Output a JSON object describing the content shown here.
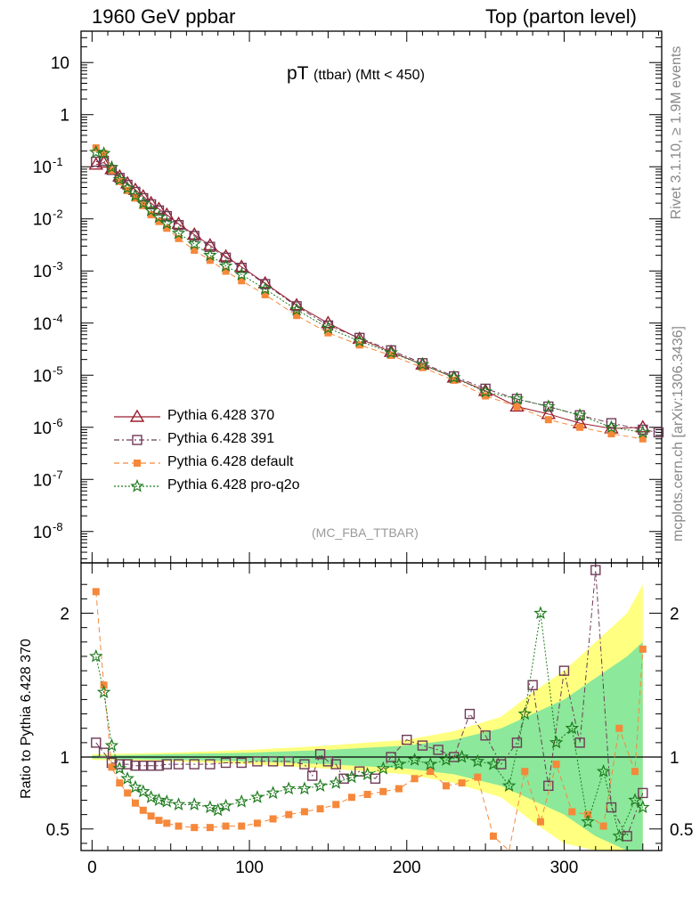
{
  "header": {
    "left": "1960 GeV ppbar",
    "right": "Top (parton level)"
  },
  "title": {
    "main": "pT",
    "sub": "(ttbar) (Mtt < 450)"
  },
  "analysis_label": "(MC_FBA_TTBAR)",
  "side_labels": {
    "rivet": "Rivet 3.1.10, ≥ 1.9M events",
    "mcplots": "mcplots.cern.ch [arXiv:1306.3436]"
  },
  "colors": {
    "p370": "#9b1c2c",
    "p391": "#6e3a57",
    "default": "#f5883a",
    "proq2o": "#1e7a1e",
    "band_outer": "#ffff80",
    "band_inner": "#8ce89a"
  },
  "chart_data": [
    {
      "type": "scatter",
      "panel": "main",
      "title": "pT (ttbar) (Mtt < 450)",
      "xlabel": "",
      "ylabel": "",
      "xlim": [
        -7,
        362
      ],
      "ylim": [
        2.5e-09,
        40
      ],
      "yscale": "log",
      "yticks": [
        {
          "v": 1e-08,
          "label": "10",
          "exp": "-8"
        },
        {
          "v": 1e-07,
          "label": "10",
          "exp": "-7"
        },
        {
          "v": 1e-06,
          "label": "10",
          "exp": "-6"
        },
        {
          "v": 1e-05,
          "label": "10",
          "exp": "-5"
        },
        {
          "v": 0.0001,
          "label": "10",
          "exp": "-4"
        },
        {
          "v": 0.001,
          "label": "10",
          "exp": "-3"
        },
        {
          "v": 0.01,
          "label": "10",
          "exp": "-2"
        },
        {
          "v": 0.1,
          "label": "10",
          "exp": "-1"
        },
        {
          "v": 1,
          "label": "1",
          "exp": ""
        },
        {
          "v": 10,
          "label": "10",
          "exp": ""
        }
      ],
      "legend_position": "lower-left",
      "series": [
        {
          "name": "Pythia 6.428 370",
          "key": "p370",
          "marker": "triangle-open",
          "x": [
            2.5,
            7.5,
            12.5,
            17.5,
            22.5,
            27.5,
            32.5,
            37.5,
            42.5,
            47.5,
            55,
            65,
            75,
            85,
            95,
            110,
            130,
            150,
            170,
            190,
            210,
            230,
            250,
            270,
            290,
            310,
            330,
            350
          ],
          "y": [
            0.11,
            0.12,
            0.09,
            0.065,
            0.048,
            0.036,
            0.027,
            0.02,
            0.0155,
            0.012,
            0.008,
            0.005,
            0.0031,
            0.0019,
            0.0012,
            0.00058,
            0.00022,
            0.0001,
            5e-05,
            2.8e-05,
            1.6e-05,
            9e-06,
            5e-06,
            2.5e-06,
            1.8e-06,
            1.2e-06,
            9.5e-07,
            1e-06
          ]
        },
        {
          "name": "Pythia 6.428 391",
          "key": "p391",
          "marker": "square-open",
          "x": [
            2.5,
            7.5,
            12.5,
            17.5,
            22.5,
            27.5,
            32.5,
            37.5,
            42.5,
            47.5,
            55,
            65,
            75,
            85,
            95,
            110,
            130,
            150,
            170,
            190,
            210,
            230,
            250,
            270,
            290,
            310,
            330,
            350,
            360
          ],
          "y": [
            0.125,
            0.13,
            0.087,
            0.061,
            0.045,
            0.033,
            0.025,
            0.019,
            0.0145,
            0.0113,
            0.0076,
            0.0047,
            0.0029,
            0.0018,
            0.00115,
            0.00056,
            0.00021,
            9e-05,
            5.2e-05,
            3e-05,
            1.7e-05,
            9.5e-06,
            5.5e-06,
            3.5e-06,
            2.5e-06,
            1.7e-06,
            1.2e-06,
            9e-07,
            8e-07
          ]
        },
        {
          "name": "Pythia 6.428 default",
          "key": "default",
          "marker": "square-filled",
          "x": [
            2.5,
            7.5,
            12.5,
            17.5,
            22.5,
            27.5,
            32.5,
            37.5,
            42.5,
            47.5,
            55,
            65,
            75,
            85,
            95,
            110,
            130,
            150,
            170,
            190,
            210,
            230,
            250,
            270,
            290,
            310,
            330,
            350
          ],
          "y": [
            0.23,
            0.18,
            0.085,
            0.052,
            0.035,
            0.025,
            0.018,
            0.012,
            0.0089,
            0.0066,
            0.0042,
            0.0025,
            0.0016,
            0.00099,
            0.00065,
            0.00035,
            0.00014,
            6.5e-05,
            3.8e-05,
            2.4e-05,
            1.4e-05,
            8e-06,
            4e-06,
            2.5e-06,
            1.4e-06,
            1e-06,
            7.5e-07,
            6e-07
          ]
        },
        {
          "name": "Pythia 6.428 pro-q2o",
          "key": "proq2o",
          "marker": "star",
          "x": [
            2.5,
            7.5,
            12.5,
            17.5,
            22.5,
            27.5,
            32.5,
            37.5,
            42.5,
            47.5,
            55,
            65,
            75,
            85,
            95,
            110,
            130,
            150,
            170,
            190,
            210,
            230,
            250,
            270,
            290,
            310,
            330,
            350
          ],
          "y": [
            0.19,
            0.18,
            0.097,
            0.057,
            0.039,
            0.028,
            0.02,
            0.0145,
            0.0108,
            0.0081,
            0.0053,
            0.0033,
            0.002,
            0.00125,
            0.00085,
            0.00045,
            0.00018,
            8e-05,
            4.5e-05,
            2.7e-05,
            1.6e-05,
            9e-06,
            4.8e-06,
            3.5e-06,
            2.5e-06,
            1.7e-06,
            1e-06,
            8e-07
          ]
        }
      ]
    },
    {
      "type": "line",
      "panel": "ratio",
      "xlabel": "",
      "ylabel": "Ratio to Pythia 6.428 370",
      "xlim": [
        -7,
        362
      ],
      "ylim": [
        0.35,
        2.35
      ],
      "yticks": [
        0.5,
        1,
        2
      ],
      "xticks": [
        0,
        100,
        200,
        300
      ],
      "reference": 1,
      "band": {
        "x": [
          0,
          50,
          100,
          150,
          200,
          230,
          260,
          280,
          300,
          320,
          340,
          350
        ],
        "outer": [
          0.02,
          0.03,
          0.05,
          0.08,
          0.12,
          0.18,
          0.28,
          0.45,
          0.6,
          0.8,
          1.0,
          1.2
        ],
        "inner": [
          0.01,
          0.02,
          0.03,
          0.05,
          0.08,
          0.12,
          0.2,
          0.3,
          0.4,
          0.55,
          0.7,
          0.8
        ]
      },
      "series": [
        {
          "name": "Pythia 6.428 391",
          "key": "p391",
          "marker": "square-open",
          "x": [
            2.5,
            7.5,
            12.5,
            17.5,
            22.5,
            27.5,
            32.5,
            37.5,
            42.5,
            47.5,
            55,
            65,
            75,
            85,
            95,
            105,
            115,
            125,
            135,
            140,
            145,
            150,
            155,
            160,
            170,
            180,
            190,
            200,
            210,
            220,
            230,
            240,
            250,
            260,
            270,
            280,
            290,
            300,
            310,
            320,
            330,
            340,
            350
          ],
          "y": [
            1.1,
            1.03,
            0.96,
            0.95,
            0.95,
            0.94,
            0.94,
            0.94,
            0.94,
            0.95,
            0.95,
            0.95,
            0.95,
            0.96,
            0.96,
            0.97,
            0.97,
            0.97,
            0.95,
            0.87,
            1.02,
            0.97,
            0.95,
            0.85,
            0.9,
            0.85,
            1.0,
            1.12,
            1.08,
            1.05,
            1.0,
            1.3,
            1.15,
            0.95,
            1.1,
            1.5,
            0.8,
            1.6,
            1.1,
            2.3,
            0.65,
            0.45,
            0.75
          ]
        },
        {
          "name": "Pythia 6.428 default",
          "key": "default",
          "marker": "square-filled",
          "x": [
            2.5,
            7.5,
            12.5,
            17.5,
            22.5,
            27.5,
            32.5,
            37.5,
            42.5,
            47.5,
            55,
            65,
            75,
            85,
            95,
            105,
            115,
            125,
            135,
            145,
            155,
            165,
            175,
            185,
            195,
            205,
            215,
            225,
            235,
            245,
            255,
            265,
            275,
            285,
            295,
            305,
            315,
            325,
            335,
            345,
            350
          ],
          "y": [
            2.15,
            1.5,
            0.93,
            0.82,
            0.75,
            0.68,
            0.63,
            0.59,
            0.56,
            0.54,
            0.52,
            0.51,
            0.51,
            0.52,
            0.52,
            0.54,
            0.57,
            0.6,
            0.62,
            0.64,
            0.67,
            0.72,
            0.74,
            0.76,
            0.78,
            0.85,
            0.9,
            0.8,
            0.82,
            0.86,
            0.45,
            0.3,
            0.9,
            0.55,
            0.95,
            0.62,
            0.6,
            0.52,
            1.2,
            0.9,
            1.75
          ]
        },
        {
          "name": "Pythia 6.428 pro-q2o",
          "key": "proq2o",
          "marker": "star",
          "x": [
            2.5,
            7.5,
            12.5,
            17.5,
            22.5,
            27.5,
            32.5,
            37.5,
            42.5,
            47.5,
            55,
            65,
            75,
            80,
            85,
            95,
            105,
            115,
            125,
            135,
            145,
            155,
            165,
            175,
            185,
            195,
            205,
            215,
            225,
            235,
            245,
            255,
            265,
            275,
            285,
            295,
            305,
            315,
            325,
            335,
            345,
            350
          ],
          "y": [
            1.7,
            1.45,
            1.08,
            0.92,
            0.85,
            0.79,
            0.76,
            0.72,
            0.7,
            0.69,
            0.67,
            0.67,
            0.65,
            0.63,
            0.66,
            0.69,
            0.72,
            0.75,
            0.78,
            0.78,
            0.8,
            0.82,
            0.86,
            0.88,
            0.92,
            0.95,
            0.98,
            0.95,
            0.98,
            1.0,
            0.97,
            0.95,
            0.8,
            1.3,
            2.0,
            1.1,
            1.2,
            0.55,
            0.9,
            0.45,
            0.7,
            0.65
          ]
        }
      ]
    }
  ],
  "x_tick_labels": [
    "0",
    "100",
    "200",
    "300"
  ]
}
